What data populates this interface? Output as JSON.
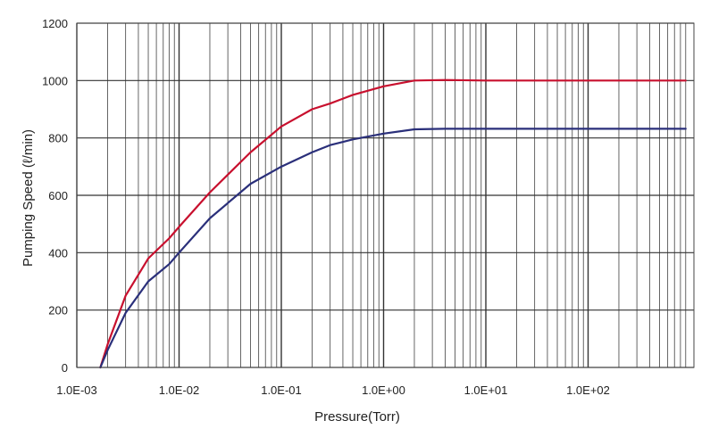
{
  "chart_data": {
    "type": "line",
    "title": "",
    "xlabel": "Pressure(Torr)",
    "ylabel": "Pumping Speed (ℓ/min)",
    "x_scale": "log",
    "xlim": [
      0.001,
      900
    ],
    "ylim": [
      0,
      1200
    ],
    "x_ticks": [
      0.001,
      0.01,
      0.1,
      1,
      10,
      100
    ],
    "x_tick_labels": [
      "1.0E-03",
      "1.0E-02",
      "1.0E-01",
      "1.0E+00",
      "1.0E+01",
      "1.0E+02"
    ],
    "y_ticks": [
      0,
      200,
      400,
      600,
      800,
      1000,
      1200
    ],
    "y_tick_labels": [
      "0",
      "200",
      "400",
      "600",
      "800",
      "1000",
      "1200"
    ],
    "grid": true,
    "legend": "none",
    "series": [
      {
        "color": "#c8102e",
        "x": [
          0.0017,
          0.002,
          0.003,
          0.005,
          0.008,
          0.01,
          0.02,
          0.05,
          0.1,
          0.2,
          0.3,
          0.5,
          1,
          2,
          4,
          10,
          100,
          900
        ],
        "y": [
          0,
          80,
          250,
          380,
          450,
          490,
          610,
          750,
          840,
          900,
          920,
          950,
          980,
          1000,
          1002,
          1000,
          1000,
          1000
        ]
      },
      {
        "color": "#2a2f7a",
        "x": [
          0.0017,
          0.002,
          0.003,
          0.005,
          0.008,
          0.01,
          0.02,
          0.05,
          0.1,
          0.2,
          0.3,
          0.5,
          1,
          2,
          4,
          10,
          100,
          900
        ],
        "y": [
          0,
          60,
          190,
          300,
          360,
          400,
          520,
          640,
          700,
          750,
          775,
          795,
          815,
          830,
          832,
          832,
          832,
          832
        ]
      }
    ]
  }
}
